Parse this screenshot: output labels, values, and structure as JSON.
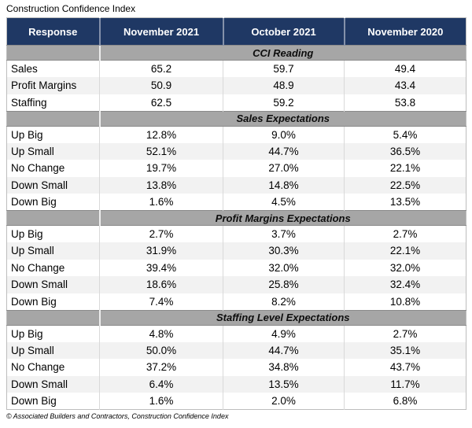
{
  "page": {
    "title": "Construction Confidence Index",
    "footer": "© Associated Builders and Contractors, Construction Confidence Index"
  },
  "colors": {
    "header_bg": "#1F3864",
    "header_text": "#FFFFFF",
    "band_bg": "#A6A6A6",
    "band_border": "#8A8A8A",
    "alt_row_bg": "#F2F2F2",
    "grid_line": "#D9D9D9",
    "outer_border": "#BDBDBD",
    "text": "#000000"
  },
  "chart_data": {
    "type": "table",
    "title": "Construction Confidence Index",
    "columns": [
      "Response",
      "November 2021",
      "October 2021",
      "November 2020"
    ],
    "sections": [
      {
        "title": "CCI Reading",
        "rows": [
          {
            "label": "Sales",
            "values": [
              "65.2",
              "59.7",
              "49.4"
            ]
          },
          {
            "label": "Profit Margins",
            "values": [
              "50.9",
              "48.9",
              "43.4"
            ]
          },
          {
            "label": "Staffing",
            "values": [
              "62.5",
              "59.2",
              "53.8"
            ]
          }
        ]
      },
      {
        "title": "Sales Expectations",
        "rows": [
          {
            "label": "Up Big",
            "values": [
              "12.8%",
              "9.0%",
              "5.4%"
            ]
          },
          {
            "label": "Up Small",
            "values": [
              "52.1%",
              "44.7%",
              "36.5%"
            ]
          },
          {
            "label": "No Change",
            "values": [
              "19.7%",
              "27.0%",
              "22.1%"
            ]
          },
          {
            "label": "Down Small",
            "values": [
              "13.8%",
              "14.8%",
              "22.5%"
            ]
          },
          {
            "label": "Down Big",
            "values": [
              "1.6%",
              "4.5%",
              "13.5%"
            ]
          }
        ]
      },
      {
        "title": "Profit Margins Expectations",
        "rows": [
          {
            "label": "Up Big",
            "values": [
              "2.7%",
              "3.7%",
              "2.7%"
            ]
          },
          {
            "label": "Up Small",
            "values": [
              "31.9%",
              "30.3%",
              "22.1%"
            ]
          },
          {
            "label": "No Change",
            "values": [
              "39.4%",
              "32.0%",
              "32.0%"
            ]
          },
          {
            "label": "Down Small",
            "values": [
              "18.6%",
              "25.8%",
              "32.4%"
            ]
          },
          {
            "label": "Down Big",
            "values": [
              "7.4%",
              "8.2%",
              "10.8%"
            ]
          }
        ]
      },
      {
        "title": "Staffing Level Expectations",
        "rows": [
          {
            "label": "Up Big",
            "values": [
              "4.8%",
              "4.9%",
              "2.7%"
            ]
          },
          {
            "label": "Up Small",
            "values": [
              "50.0%",
              "44.7%",
              "35.1%"
            ]
          },
          {
            "label": "No Change",
            "values": [
              "37.2%",
              "34.8%",
              "43.7%"
            ]
          },
          {
            "label": "Down Small",
            "values": [
              "6.4%",
              "13.5%",
              "11.7%"
            ]
          },
          {
            "label": "Down Big",
            "values": [
              "1.6%",
              "2.0%",
              "6.8%"
            ]
          }
        ]
      }
    ]
  }
}
